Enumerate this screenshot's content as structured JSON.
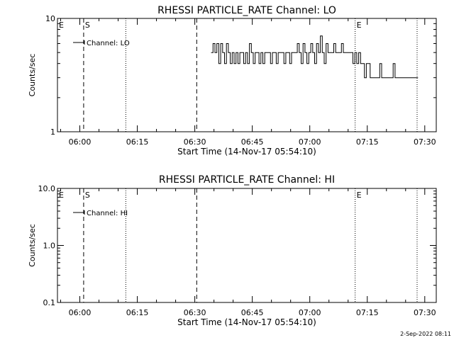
{
  "chart_data": [
    {
      "type": "line",
      "title": "RHESSI PARTICLE_RATE Channel: LO",
      "xlabel": "Start Time (14-Nov-17 05:54:10)",
      "ylabel": "Counts/sec",
      "y_scale": "log",
      "ylim": [
        1,
        10
      ],
      "y_ticks": [
        {
          "value": 1,
          "label": "1"
        },
        {
          "value": 10,
          "label": "10"
        }
      ],
      "xlim": [
        "05:54:10",
        "07:33:00"
      ],
      "x_ticks": [
        "06:00",
        "06:15",
        "06:30",
        "06:45",
        "07:00",
        "07:15",
        "07:30"
      ],
      "legend": {
        "label": "Channel: LO",
        "placement": "top-left"
      },
      "markers": [
        {
          "time": "05:54:10",
          "label": "E",
          "style": "dotted"
        },
        {
          "time": "06:01:00",
          "label": "S",
          "style": "dashed"
        },
        {
          "time": "06:12:00",
          "label": "",
          "style": "dotted"
        },
        {
          "time": "06:30:30",
          "label": "",
          "style": "dashed"
        },
        {
          "time": "07:11:50",
          "label": "E",
          "style": "dotted"
        },
        {
          "time": "07:28:00",
          "label": "",
          "style": "dotted"
        }
      ],
      "series": [
        {
          "name": "Channel: LO",
          "x": [
            "06:34:30",
            "06:35:00",
            "06:35:30",
            "06:36:00",
            "06:36:30",
            "06:37:00",
            "06:37:30",
            "06:38:00",
            "06:38:30",
            "06:39:00",
            "06:39:30",
            "06:40:00",
            "06:40:30",
            "06:41:00",
            "06:41:30",
            "06:42:00",
            "06:42:30",
            "06:43:00",
            "06:43:30",
            "06:44:00",
            "06:44:30",
            "06:45:00",
            "06:45:30",
            "06:46:00",
            "06:46:30",
            "06:47:00",
            "06:47:30",
            "06:48:00",
            "06:48:30",
            "06:49:00",
            "06:49:30",
            "06:50:00",
            "06:50:30",
            "06:51:00",
            "06:51:30",
            "06:52:00",
            "06:52:30",
            "06:53:00",
            "06:53:30",
            "06:54:00",
            "06:54:30",
            "06:55:00",
            "06:55:30",
            "06:56:00",
            "06:56:30",
            "06:57:00",
            "06:57:30",
            "06:58:00",
            "06:58:30",
            "06:59:00",
            "06:59:30",
            "07:00:00",
            "07:00:30",
            "07:01:00",
            "07:01:30",
            "07:02:00",
            "07:02:30",
            "07:03:00",
            "07:03:30",
            "07:04:00",
            "07:04:30",
            "07:05:00",
            "07:05:30",
            "07:06:00",
            "07:06:30",
            "07:07:00",
            "07:07:30",
            "07:08:00",
            "07:08:30",
            "07:09:00",
            "07:09:30",
            "07:10:00",
            "07:10:30",
            "07:11:00",
            "07:11:30",
            "07:12:00",
            "07:12:30",
            "07:13:00",
            "07:13:30",
            "07:14:00",
            "07:14:30",
            "07:15:00",
            "07:15:30",
            "07:16:00",
            "07:16:30",
            "07:17:00",
            "07:17:30",
            "07:18:00",
            "07:18:30",
            "07:19:00",
            "07:19:30",
            "07:20:00",
            "07:20:30",
            "07:21:00",
            "07:21:30",
            "07:22:00",
            "07:22:30",
            "07:23:00",
            "07:23:30",
            "07:24:00",
            "07:24:30",
            "07:25:00",
            "07:25:30",
            "07:26:00",
            "07:26:30",
            "07:27:00",
            "07:27:30",
            "07:28:00"
          ],
          "values": [
            5,
            6,
            5,
            6,
            4,
            6,
            5,
            4,
            6,
            5,
            4,
            5,
            4,
            5,
            4,
            5,
            5,
            4,
            5,
            4,
            6,
            5,
            4,
            5,
            5,
            4,
            5,
            4,
            5,
            5,
            5,
            4,
            5,
            5,
            4,
            5,
            5,
            5,
            4,
            5,
            5,
            4,
            5,
            5,
            5,
            6,
            5,
            4,
            6,
            5,
            4,
            5,
            6,
            5,
            4,
            6,
            5,
            7,
            5,
            4,
            6,
            5,
            5,
            5,
            6,
            5,
            5,
            5,
            6,
            5,
            5,
            5,
            5,
            5,
            4,
            5,
            4,
            5,
            4,
            4,
            3,
            4,
            4,
            3,
            3,
            3,
            3,
            3,
            4,
            3,
            3,
            3,
            3,
            3,
            3,
            4,
            3,
            3,
            3,
            3,
            3,
            3,
            3,
            3,
            3,
            3,
            3,
            3
          ]
        }
      ]
    },
    {
      "type": "line",
      "title": "RHESSI PARTICLE_RATE Channel: HI",
      "xlabel": "Start Time (14-Nov-17 05:54:10)",
      "ylabel": "Counts/sec",
      "y_scale": "log",
      "ylim": [
        0.1,
        10
      ],
      "y_ticks": [
        {
          "value": 0.1,
          "label": "0.1"
        },
        {
          "value": 1,
          "label": "1.0"
        },
        {
          "value": 10,
          "label": "10.0"
        }
      ],
      "xlim": [
        "05:54:10",
        "07:33:00"
      ],
      "x_ticks": [
        "06:00",
        "06:15",
        "06:30",
        "06:45",
        "07:00",
        "07:15",
        "07:30"
      ],
      "legend": {
        "label": "Channel: HI",
        "placement": "top-left"
      },
      "markers": [
        {
          "time": "05:54:10",
          "label": "E",
          "style": "dotted"
        },
        {
          "time": "06:01:00",
          "label": "S",
          "style": "dashed"
        },
        {
          "time": "06:12:00",
          "label": "",
          "style": "dotted"
        },
        {
          "time": "06:30:30",
          "label": "",
          "style": "dashed"
        },
        {
          "time": "07:11:50",
          "label": "E",
          "style": "dotted"
        },
        {
          "time": "07:28:00",
          "label": "",
          "style": "dotted"
        }
      ],
      "series": [
        {
          "name": "Channel: HI",
          "x": [],
          "values": []
        }
      ]
    }
  ],
  "footer": {
    "date": "2-Sep-2022 08:11"
  }
}
